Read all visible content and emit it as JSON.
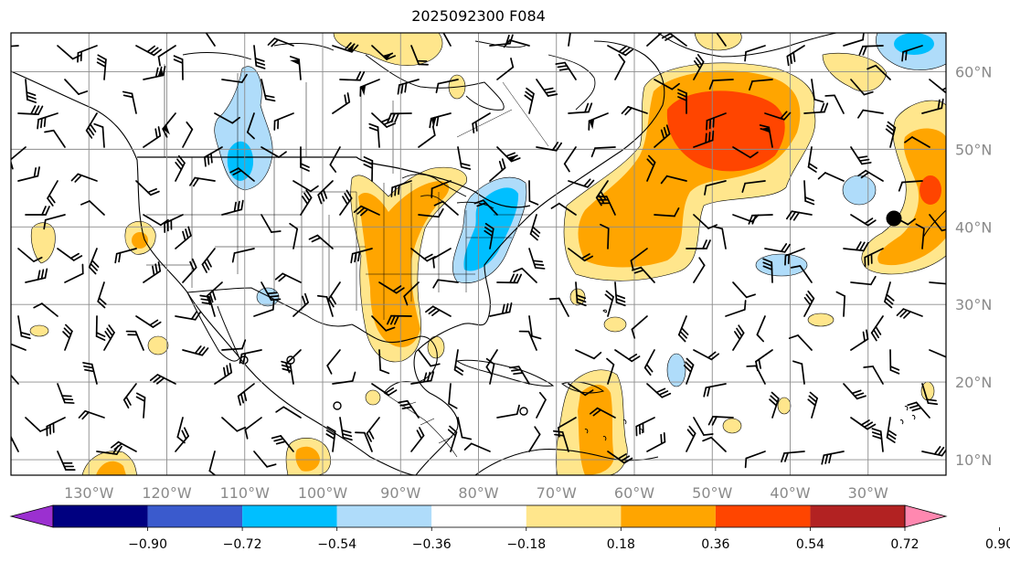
{
  "title": "2025092300 F084",
  "lon_labels": [
    "130°W",
    "120°W",
    "110°W",
    "100°W",
    "90°W",
    "80°W",
    "70°W",
    "60°W",
    "50°W",
    "40°W",
    "30°W"
  ],
  "lat_labels": [
    "60°N",
    "50°N",
    "40°N",
    "30°N",
    "20°N",
    "10°N"
  ],
  "colorbar": {
    "ticks": [
      "−0.90",
      "−0.72",
      "−0.54",
      "−0.36",
      "−0.18",
      "0.18",
      "0.36",
      "0.54",
      "0.72",
      "0.90"
    ],
    "colors": [
      "#9b30d0",
      "#000080",
      "#3a5acd",
      "#00bfff",
      "#afdcfa",
      "#ffffff",
      "#ffe68c",
      "#ffa500",
      "#ff4500",
      "#b22222",
      "#ff88b0"
    ]
  },
  "map": {
    "lon_range": [
      -140,
      -20
    ],
    "lat_range": [
      8,
      65
    ],
    "grid": true,
    "colors": {
      "light_yellow": "#ffe68c",
      "orange": "#ffa500",
      "red_orange": "#ff4500",
      "light_blue": "#afdcfa",
      "blue": "#00bfff"
    }
  }
}
